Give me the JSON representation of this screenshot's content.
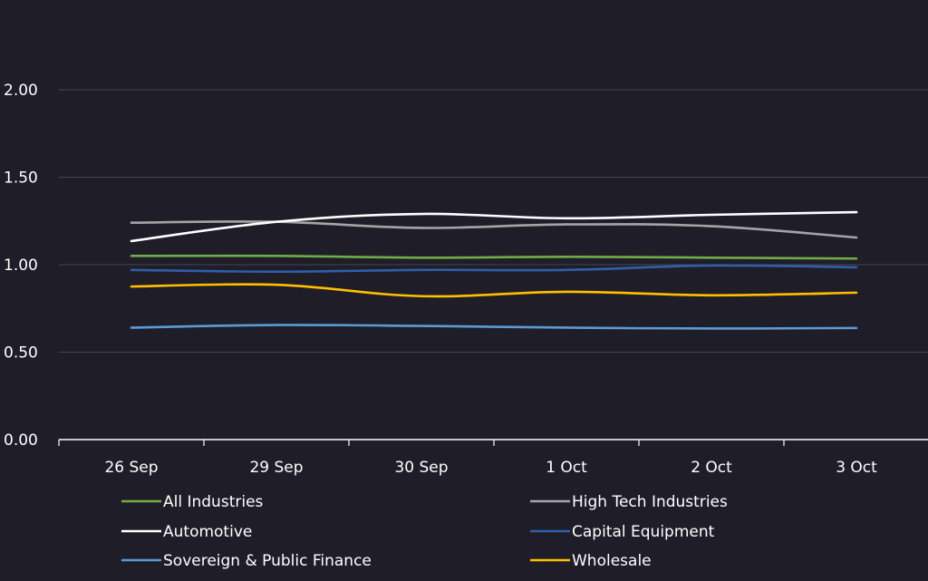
{
  "chart_data": {
    "type": "line",
    "categories": [
      "26 Sep",
      "29 Sep",
      "30 Sep",
      "1 Oct",
      "2 Oct",
      "3 Oct"
    ],
    "ylim": [
      0,
      2.0
    ],
    "yticks": [
      "0.00",
      "0.50",
      "1.00",
      "1.50",
      "2.00"
    ],
    "grid": true,
    "legend_position": "bottom",
    "series": [
      {
        "name": "All Industries",
        "color": "#70ad47",
        "values": [
          1.05,
          1.05,
          1.04,
          1.045,
          1.04,
          1.035
        ]
      },
      {
        "name": "High Tech Industries",
        "color": "#a5a5a5",
        "values": [
          1.24,
          1.245,
          1.21,
          1.23,
          1.22,
          1.155
        ]
      },
      {
        "name": "Automotive",
        "color": "#ffffff",
        "values": [
          1.135,
          1.245,
          1.29,
          1.265,
          1.285,
          1.3
        ]
      },
      {
        "name": "Capital Equipment",
        "color": "#2f5fa8",
        "values": [
          0.97,
          0.96,
          0.97,
          0.97,
          0.995,
          0.985
        ]
      },
      {
        "name": "Sovereign & Public Finance",
        "color": "#5b9bd5",
        "values": [
          0.64,
          0.655,
          0.65,
          0.64,
          0.635,
          0.638
        ]
      },
      {
        "name": "Wholesale",
        "color": "#ffc000",
        "values": [
          0.875,
          0.885,
          0.82,
          0.845,
          0.825,
          0.84
        ]
      }
    ]
  }
}
